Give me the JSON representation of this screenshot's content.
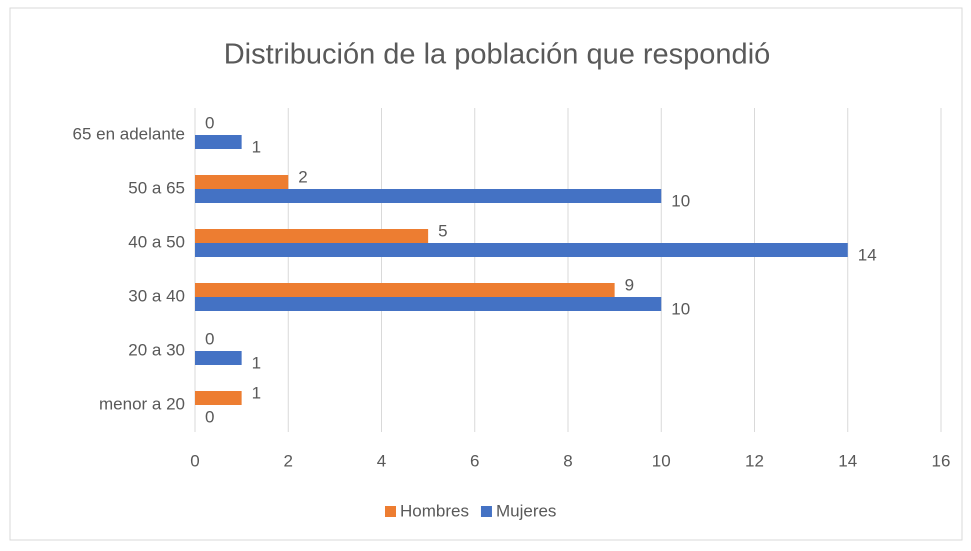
{
  "chart_data": {
    "type": "bar",
    "orientation": "horizontal",
    "title": "Distribución de la población que respondió",
    "categories": [
      "menor a 20",
      "20 a 30",
      "30 a 40",
      "40 a 50",
      "50 a 65",
      "65 en adelante"
    ],
    "series": [
      {
        "name": "Hombres",
        "color": "#ed7d31",
        "values": [
          1,
          0,
          9,
          5,
          2,
          0
        ]
      },
      {
        "name": "Mujeres",
        "color": "#4472c4",
        "values": [
          0,
          1,
          10,
          14,
          10,
          1
        ]
      }
    ],
    "xlim": [
      0,
      16
    ],
    "xticks": [
      0,
      2,
      4,
      6,
      8,
      10,
      12,
      14,
      16
    ],
    "grid": true,
    "legend": "bottom"
  }
}
